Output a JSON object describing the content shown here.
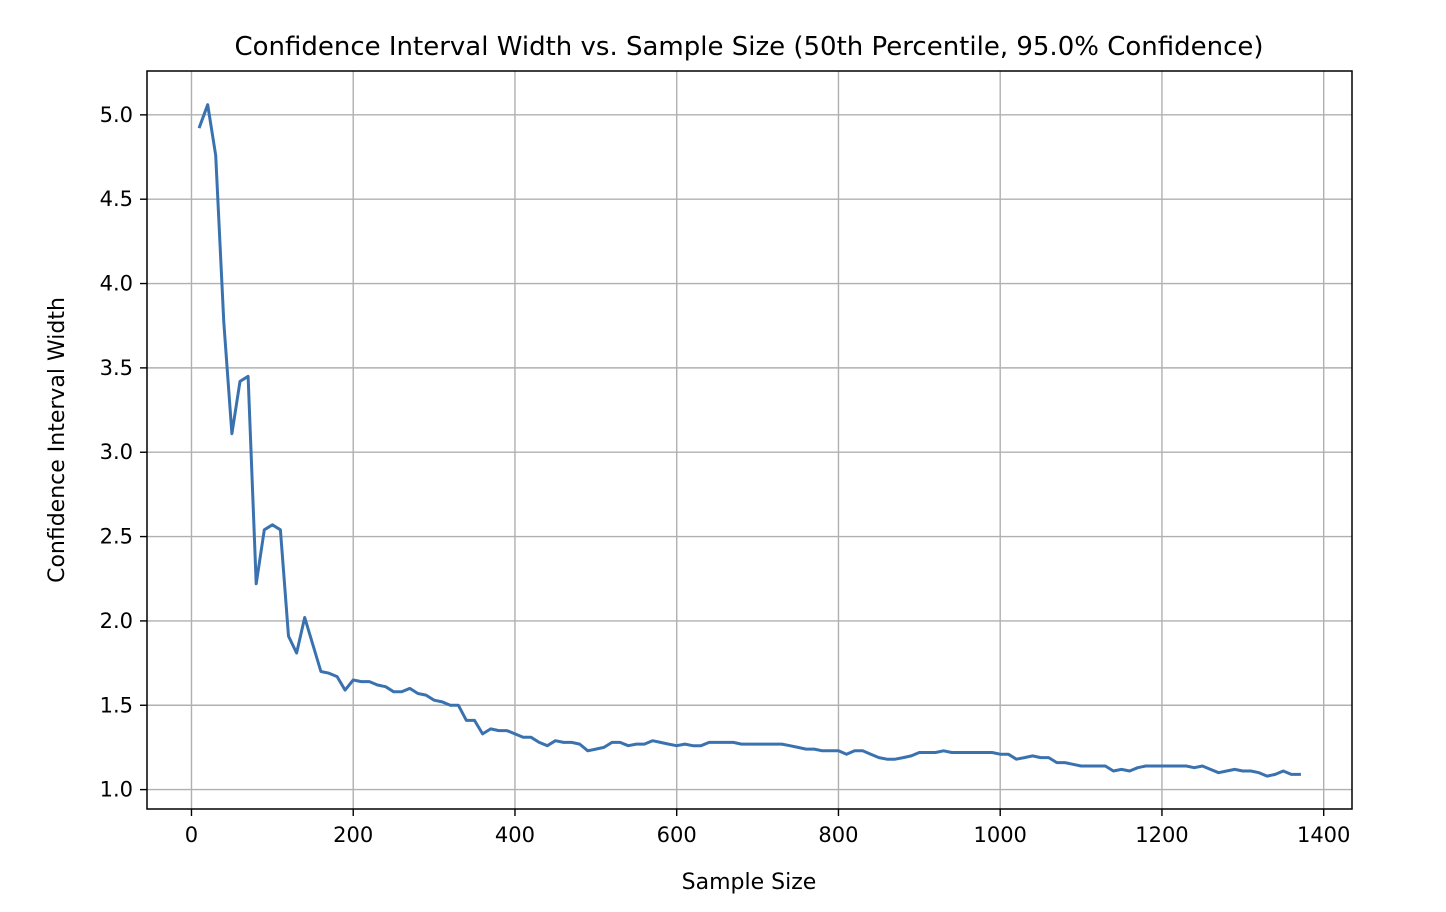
{
  "chart_data": {
    "type": "line",
    "title": "Confidence Interval Width vs. Sample Size (50th Percentile, 95.0% Confidence)",
    "xlabel": "Sample Size",
    "ylabel": "Confidence Interval Width",
    "xlim": [
      -55,
      1435
    ],
    "ylim": [
      0.885,
      5.26
    ],
    "xticks": [
      0,
      200,
      400,
      600,
      800,
      1000,
      1200,
      1400
    ],
    "yticks": [
      1.0,
      1.5,
      2.0,
      2.5,
      3.0,
      3.5,
      4.0,
      4.5,
      5.0
    ],
    "xtick_labels": [
      "0",
      "200",
      "400",
      "600",
      "800",
      "1000",
      "1200",
      "1400"
    ],
    "ytick_labels": [
      "1.0",
      "1.5",
      "2.0",
      "2.5",
      "3.0",
      "3.5",
      "4.0",
      "4.5",
      "5.0"
    ],
    "grid": true,
    "line_color": "#3a72b0",
    "series": [
      {
        "x": [
          10,
          20,
          30,
          40,
          50,
          60,
          70,
          80,
          90,
          100,
          110,
          120,
          130,
          140,
          150,
          160,
          170,
          180,
          190,
          200,
          210,
          220,
          230,
          240,
          250,
          260,
          270,
          280,
          290,
          300,
          310,
          320,
          330,
          340,
          350,
          360,
          370,
          380,
          390,
          400,
          410,
          420,
          430,
          440,
          450,
          460,
          470,
          480,
          490,
          500,
          510,
          520,
          530,
          540,
          550,
          560,
          570,
          580,
          590,
          600,
          610,
          620,
          630,
          640,
          650,
          660,
          670,
          680,
          690,
          700,
          710,
          720,
          730,
          740,
          750,
          760,
          770,
          780,
          790,
          800,
          810,
          820,
          830,
          840,
          850,
          860,
          870,
          880,
          890,
          900,
          910,
          920,
          930,
          940,
          950,
          960,
          970,
          980,
          990,
          1000,
          1010,
          1020,
          1030,
          1040,
          1050,
          1060,
          1070,
          1080,
          1090,
          1100,
          1110,
          1120,
          1130,
          1140,
          1150,
          1160,
          1170,
          1180,
          1190,
          1200,
          1210,
          1220,
          1230,
          1240,
          1250,
          1260,
          1270,
          1280,
          1290,
          1300,
          1310,
          1320,
          1330,
          1340,
          1350,
          1360,
          1370
        ],
        "values": [
          4.93,
          5.06,
          4.76,
          3.77,
          3.11,
          3.42,
          3.45,
          2.22,
          2.54,
          2.57,
          2.54,
          1.91,
          1.81,
          2.02,
          1.86,
          1.7,
          1.69,
          1.67,
          1.59,
          1.65,
          1.64,
          1.64,
          1.62,
          1.61,
          1.58,
          1.58,
          1.6,
          1.57,
          1.56,
          1.53,
          1.52,
          1.5,
          1.5,
          1.41,
          1.41,
          1.33,
          1.36,
          1.35,
          1.35,
          1.33,
          1.31,
          1.31,
          1.28,
          1.26,
          1.29,
          1.28,
          1.28,
          1.27,
          1.23,
          1.24,
          1.25,
          1.28,
          1.28,
          1.26,
          1.27,
          1.27,
          1.29,
          1.28,
          1.27,
          1.26,
          1.27,
          1.26,
          1.26,
          1.28,
          1.28,
          1.28,
          1.28,
          1.27,
          1.27,
          1.27,
          1.27,
          1.27,
          1.27,
          1.26,
          1.25,
          1.24,
          1.24,
          1.23,
          1.23,
          1.23,
          1.21,
          1.23,
          1.23,
          1.21,
          1.19,
          1.18,
          1.18,
          1.19,
          1.2,
          1.22,
          1.22,
          1.22,
          1.23,
          1.22,
          1.22,
          1.22,
          1.22,
          1.22,
          1.22,
          1.21,
          1.21,
          1.18,
          1.19,
          1.2,
          1.19,
          1.19,
          1.16,
          1.16,
          1.15,
          1.14,
          1.14,
          1.14,
          1.14,
          1.11,
          1.12,
          1.11,
          1.13,
          1.14,
          1.14,
          1.14,
          1.14,
          1.14,
          1.14,
          1.13,
          1.14,
          1.12,
          1.1,
          1.11,
          1.12,
          1.11,
          1.11,
          1.1,
          1.08,
          1.09,
          1.11,
          1.09,
          1.09
        ]
      }
    ]
  }
}
